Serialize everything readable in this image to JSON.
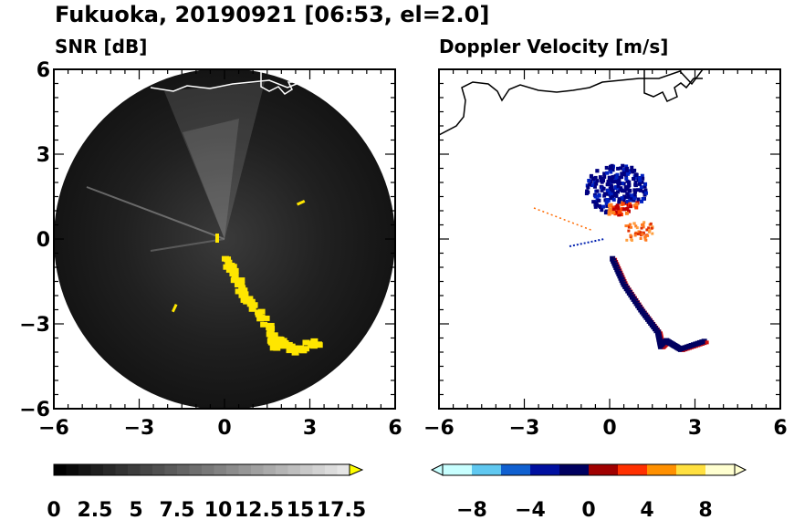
{
  "figure": {
    "title": "Fukuoka, 20190921 [06:53, el=2.0]"
  },
  "chart_data": [
    {
      "type": "heatmap",
      "title": "SNR [dB]",
      "xlim": [
        -6,
        6
      ],
      "ylim": [
        -6,
        6
      ],
      "x_ticks": [
        "−6",
        "−3",
        "0",
        "3",
        "6"
      ],
      "y_ticks": [
        "6",
        "3",
        "0",
        "−3",
        "−6"
      ],
      "x_tick_values": [
        -6,
        -3,
        0,
        3,
        6
      ],
      "y_tick_values": [
        6,
        3,
        0,
        -3,
        -6
      ],
      "radar_range": 6,
      "background_color": "#1a1a1a",
      "echo_color": "#ffe600",
      "echo_path": [
        [
          0.1,
          -0.7
        ],
        [
          0.5,
          -1.6
        ],
        [
          1.1,
          -2.5
        ],
        [
          1.7,
          -3.3
        ],
        [
          1.8,
          -3.8
        ],
        [
          2.0,
          -3.6
        ],
        [
          2.5,
          -3.9
        ],
        [
          3.4,
          -3.6
        ]
      ],
      "colorbar": {
        "min": 0,
        "max": 18,
        "extend": "max",
        "tick_values": [
          0,
          2.5,
          5,
          7.5,
          10,
          12.5,
          15,
          17.5
        ],
        "tick_labels": [
          "0",
          "2.5",
          "5",
          "7.5",
          "10",
          "12.5",
          "15",
          "17.5"
        ],
        "colors": [
          "#000000",
          "#ffffff"
        ]
      }
    },
    {
      "type": "heatmap",
      "title": "Doppler Velocity [m/s]",
      "xlim": [
        -6,
        6
      ],
      "ylim": [
        -6,
        6
      ],
      "x_ticks": [
        "−6",
        "−3",
        "0",
        "3",
        "6"
      ],
      "y_ticks": [],
      "x_tick_values": [
        -6,
        -3,
        0,
        3,
        6
      ],
      "echo_path": [
        [
          0.1,
          -0.7
        ],
        [
          0.5,
          -1.6
        ],
        [
          1.1,
          -2.5
        ],
        [
          1.7,
          -3.3
        ],
        [
          1.8,
          -3.8
        ],
        [
          2.0,
          -3.6
        ],
        [
          2.5,
          -3.9
        ],
        [
          3.4,
          -3.6
        ]
      ],
      "cluster_center": [
        0.2,
        1.8
      ],
      "colorbar": {
        "min": -10,
        "max": 10,
        "extend": "both",
        "tick_values": [
          -8,
          -4,
          0,
          4,
          8
        ],
        "tick_labels": [
          "−8",
          "−4",
          "0",
          "4",
          "8"
        ],
        "colors": [
          "#c8ffff",
          "#60c8f0",
          "#1060d0",
          "#0010a0",
          "#000060",
          "#a00000",
          "#ff3000",
          "#ff9000",
          "#ffe040",
          "#ffffd0"
        ]
      }
    }
  ]
}
